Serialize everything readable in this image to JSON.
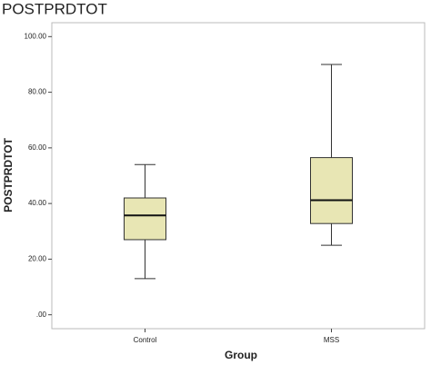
{
  "chart_data": {
    "type": "box",
    "title": "POSTPRDTOT",
    "x_label": "Group",
    "y_label": "POSTPRDTOT",
    "categories": [
      "Control",
      "MSS"
    ],
    "boxes": [
      {
        "min": 13,
        "q1": 27,
        "median": 35.7,
        "q3": 42,
        "max": 54
      },
      {
        "min": 25,
        "q1": 32.8,
        "median": 41.2,
        "q3": 56.5,
        "max": 90
      }
    ],
    "color": "#e8e6b4",
    "ylim": [
      -5,
      105
    ],
    "yticks": [
      {
        "value": 0,
        "label": ".00"
      },
      {
        "value": 20,
        "label": "20.00"
      },
      {
        "value": 40,
        "label": "40.00"
      },
      {
        "value": 60,
        "label": "60.00"
      },
      {
        "value": 80,
        "label": "80.00"
      },
      {
        "value": 100,
        "label": "100.00"
      }
    ]
  }
}
